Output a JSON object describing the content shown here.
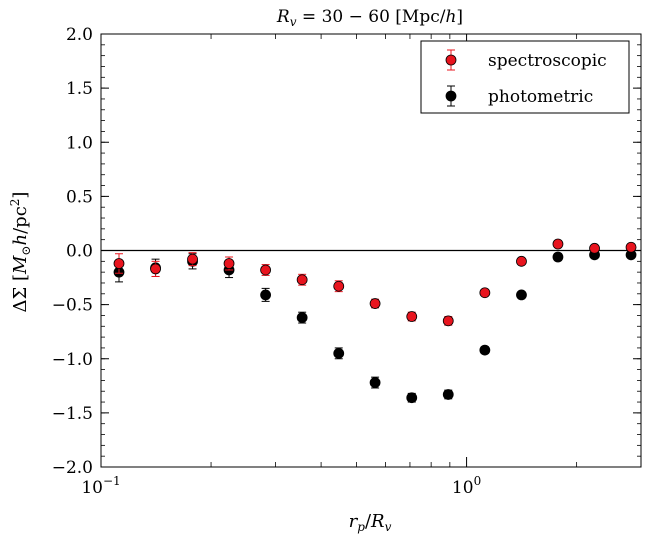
{
  "chart_data": {
    "type": "scatter",
    "title": "R_v = 30 − 60 [Mpc/h]",
    "title_parts": {
      "lhs_var": "R",
      "lhs_sub": "v",
      "rest": " = 30 − 60 [Mpc/",
      "h_var": "h",
      "close": "]"
    },
    "xlabel": "r_p/R_v",
    "xlabel_parts": {
      "a": "r",
      "a_sub": "p",
      "slash": "/",
      "b": "R",
      "b_sub": "v"
    },
    "ylabel": "ΔΣ [M⊙h/pc²]",
    "ylabel_parts": {
      "delta": "ΔΣ [",
      "m": "M",
      "msub": "⊙",
      "h": "h",
      "unit": "/pc",
      "sup": "2",
      "close": "]"
    },
    "x_scale": "log",
    "xlim": [
      0.1,
      3.0
    ],
    "ylim": [
      -2.0,
      2.0
    ],
    "y_ticks": [
      2.0,
      1.5,
      1.0,
      0.5,
      0.0,
      -0.5,
      -1.0,
      -1.5,
      -2.0
    ],
    "y_tick_labels": [
      "2.0",
      "1.5",
      "1.0",
      "0.5",
      "0.0",
      "−0.5",
      "−1.0",
      "−1.5",
      "−2.0"
    ],
    "x_major_ticks": [
      {
        "value": 0.1,
        "base": "10",
        "exp": "−1"
      },
      {
        "value": 1.0,
        "base": "10",
        "exp": "0"
      }
    ],
    "zero_line": true,
    "grid": false,
    "legend_position": "top-right",
    "series": [
      {
        "name": "spectroscopic",
        "color": "#e8141e",
        "x": [
          0.112,
          0.141,
          0.178,
          0.224,
          0.282,
          0.355,
          0.447,
          0.562,
          0.708,
          0.891,
          1.122,
          1.413,
          1.778,
          2.239,
          2.818
        ],
        "y": [
          -0.12,
          -0.17,
          -0.08,
          -0.12,
          -0.18,
          -0.27,
          -0.33,
          -0.49,
          -0.61,
          -0.65,
          -0.39,
          -0.1,
          0.06,
          0.02,
          0.03
        ],
        "yerr": [
          0.09,
          0.07,
          0.06,
          0.06,
          0.05,
          0.05,
          0.05,
          0.04,
          0.04,
          0.04,
          0.03,
          0.03,
          0.03,
          0.02,
          0.02
        ]
      },
      {
        "name": "photometric",
        "color": "#000000",
        "x": [
          0.112,
          0.141,
          0.178,
          0.224,
          0.282,
          0.355,
          0.447,
          0.562,
          0.708,
          0.891,
          1.122,
          1.413,
          1.778,
          2.239,
          2.818
        ],
        "y": [
          -0.2,
          -0.16,
          -0.1,
          -0.18,
          -0.41,
          -0.62,
          -0.95,
          -1.22,
          -1.36,
          -1.33,
          -0.92,
          -0.41,
          -0.06,
          -0.04,
          -0.04
        ],
        "yerr": [
          0.09,
          0.08,
          0.07,
          0.07,
          0.06,
          0.05,
          0.05,
          0.05,
          0.04,
          0.04,
          0.03,
          0.03,
          0.03,
          0.02,
          0.02
        ]
      }
    ]
  }
}
